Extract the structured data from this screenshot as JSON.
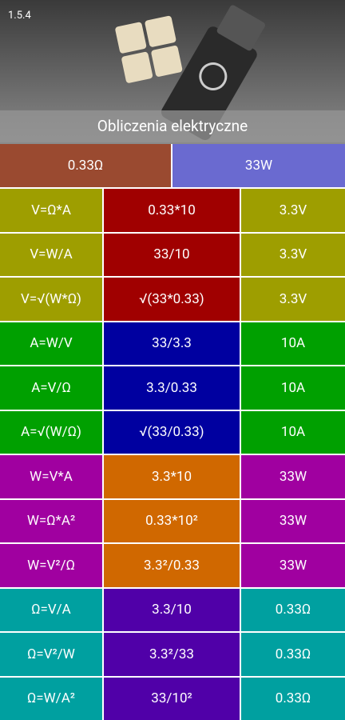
{
  "version": "1.5.4",
  "title": "Obliczenia elektryczne",
  "inputs": [
    "0.33Ω",
    "33W"
  ],
  "rows": [
    [
      "V=Ω*A",
      "0.33*10",
      "3.3V"
    ],
    [
      "V=W/A",
      "33/10",
      "3.3V"
    ],
    [
      "V=√(W*Ω)",
      "√(33*0.33)",
      "3.3V"
    ],
    [
      "A=W/V",
      "33/3.3",
      "10A"
    ],
    [
      "A=V/Ω",
      "3.3/0.33",
      "10A"
    ],
    [
      "A=√(W/Ω)",
      "√(33/0.33)",
      "10A"
    ],
    [
      "W=V*A",
      "3.3*10",
      "33W"
    ],
    [
      "W=Ω*A²",
      "0.33*10²",
      "33W"
    ],
    [
      "W=V²/Ω",
      "3.3²/0.33",
      "33W"
    ],
    [
      "Ω=V/A",
      "3.3/10",
      "0.33Ω"
    ],
    [
      "Ω=V²/W",
      "3.3²/33",
      "0.33Ω"
    ],
    [
      "Ω=W/A²",
      "33/10²",
      "0.33Ω"
    ]
  ]
}
